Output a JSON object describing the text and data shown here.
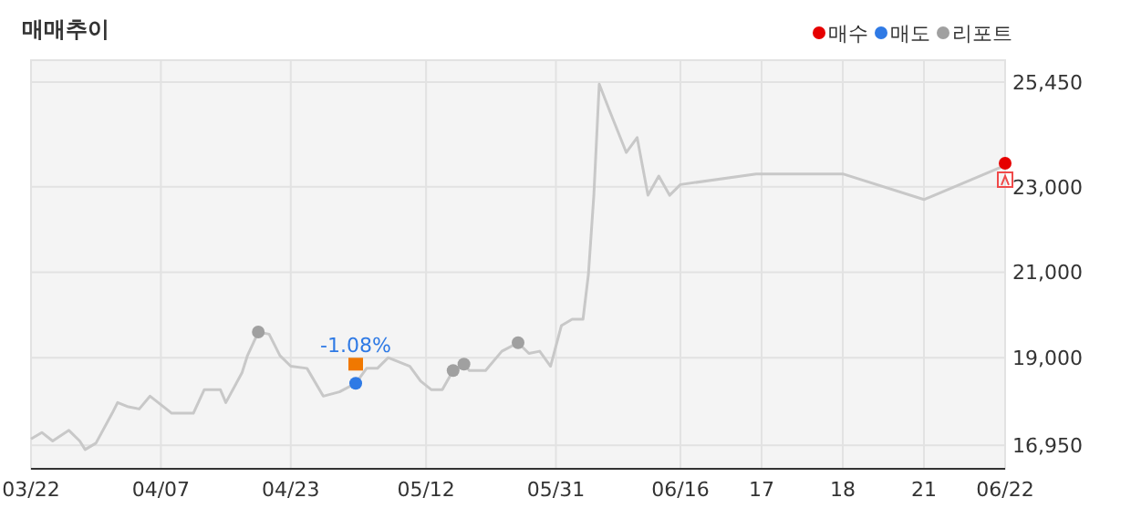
{
  "chart_data": {
    "type": "line",
    "title": "매매추이",
    "categories": [
      "03/22",
      null,
      null,
      null,
      null,
      null,
      null,
      null,
      null,
      null,
      null,
      null,
      null,
      null,
      null,
      null,
      null,
      null,
      null,
      null,
      null,
      null,
      null,
      null,
      "04/07",
      null,
      null,
      null,
      null,
      null,
      null,
      null,
      null,
      null,
      null,
      null,
      null,
      null,
      null,
      null,
      null,
      null,
      null,
      null,
      null,
      null,
      null,
      null,
      "04/23",
      null,
      null,
      null,
      null,
      null,
      null,
      null,
      null,
      null,
      null,
      null,
      null,
      null,
      null,
      null,
      null,
      null,
      null,
      null,
      null,
      null,
      null,
      null,
      null,
      "05/12",
      null,
      null,
      null,
      null,
      null,
      null,
      null,
      null,
      null,
      null,
      null,
      null,
      null,
      null,
      null,
      null,
      null,
      null,
      null,
      null,
      null,
      null,
      null,
      "05/31",
      null,
      null,
      null,
      null,
      null,
      null,
      null,
      null,
      null,
      null,
      null,
      null,
      null,
      null,
      null,
      null,
      null,
      null,
      null,
      null,
      null,
      null,
      "06/16",
      null,
      null,
      null,
      null,
      null,
      null,
      null,
      null,
      null,
      null,
      null,
      null,
      null,
      null,
      "17",
      null,
      null,
      null,
      null,
      null,
      null,
      null,
      null,
      null,
      null,
      null,
      null,
      null,
      null,
      "18",
      null,
      null,
      null,
      null,
      null,
      null,
      null,
      null,
      null,
      null,
      null,
      null,
      null,
      null,
      "21",
      null,
      null,
      null,
      null,
      null,
      null,
      null,
      null,
      null,
      null,
      null,
      null,
      null,
      null,
      "06/22"
    ],
    "ylim": [
      16400,
      25960
    ],
    "yticks": [
      {
        "value": 16950,
        "label": "16,950"
      },
      {
        "value": 19000,
        "label": "19,000"
      },
      {
        "value": 21000,
        "label": "21,000"
      },
      {
        "value": 23000,
        "label": "23,000"
      },
      {
        "value": 25450,
        "label": "25,450"
      }
    ],
    "grid": true,
    "legend": "top right",
    "series": [
      {
        "color": "#c8c8c8",
        "marker": "none",
        "values": [
          17100,
          null,
          17250,
          null,
          17050,
          null,
          null,
          17300,
          null,
          17050,
          16850,
          null,
          17000,
          null,
          null,
          17700,
          17950,
          null,
          17850,
          null,
          17800,
          null,
          18100,
          null,
          null,
          17800,
          17700,
          null,
          null,
          null,
          17700,
          null,
          18250,
          null,
          null,
          18250,
          17950,
          null,
          null,
          18650,
          19050,
          null,
          19600,
          null,
          19550,
          null,
          19050,
          null,
          18800,
          null,
          null,
          18750,
          null,
          null,
          18100,
          null,
          null,
          18200,
          null,
          null,
          18400,
          null,
          18750,
          null,
          18750,
          null,
          19000,
          null,
          null,
          null,
          18800,
          null,
          18450,
          null,
          18250,
          null,
          18250,
          null,
          18700,
          null,
          18850,
          18700,
          null,
          null,
          18700,
          null,
          null,
          19150,
          null,
          null,
          19350,
          null,
          19100,
          null,
          19150,
          null,
          18800,
          null,
          19750,
          null,
          19900,
          null,
          19900,
          20950,
          22800,
          25400,
          null,
          24750,
          null,
          null,
          23800,
          null,
          24150,
          null,
          22800,
          null,
          23250,
          null,
          22800,
          null,
          23050,
          null,
          null,
          null,
          null,
          null,
          null,
          null,
          null,
          null,
          null,
          null,
          null,
          null,
          23300,
          null,
          null,
          null,
          null,
          null,
          null,
          null,
          null,
          null,
          null,
          null,
          null,
          null,
          null,
          null,
          23300,
          null,
          null,
          null,
          null,
          null,
          null,
          null,
          null,
          null,
          null,
          null,
          null,
          null,
          null,
          22700,
          null,
          null,
          null,
          null,
          null,
          null,
          null,
          null,
          null,
          null,
          null,
          null,
          null,
          null,
          23500
        ]
      },
      {
        "type": "scatter",
        "name": "매수",
        "color": "#e60000",
        "marker": "circle",
        "values": [
          null,
          null,
          null,
          null,
          null,
          null,
          null,
          null,
          null,
          null,
          null,
          null,
          null,
          null,
          null,
          null,
          null,
          null,
          null,
          null,
          null,
          null,
          null,
          null,
          null,
          null,
          null,
          null,
          null,
          null,
          null,
          null,
          null,
          null,
          null,
          null,
          null,
          null,
          null,
          null,
          null,
          null,
          null,
          null,
          null,
          null,
          null,
          null,
          null,
          null,
          null,
          null,
          null,
          null,
          null,
          null,
          null,
          null,
          null,
          null,
          null,
          null,
          null,
          null,
          null,
          null,
          null,
          null,
          null,
          null,
          null,
          null,
          null,
          null,
          null,
          null,
          null,
          null,
          null,
          null,
          null,
          null,
          null,
          null,
          null,
          null,
          null,
          null,
          null,
          null,
          null,
          null,
          null,
          null,
          null,
          null,
          null,
          null,
          null,
          null,
          null,
          null,
          null,
          null,
          null,
          null,
          null,
          null,
          null,
          null,
          null,
          null,
          null,
          null,
          null,
          null,
          null,
          null,
          null,
          null,
          null,
          null,
          null,
          null,
          null,
          null,
          null,
          null,
          null,
          null,
          null,
          null,
          null,
          null,
          null,
          null,
          null,
          null,
          null,
          null,
          null,
          null,
          null,
          null,
          null,
          null,
          null,
          null,
          null,
          null,
          null,
          null,
          null,
          null,
          null,
          null,
          null,
          null,
          null,
          null,
          null,
          null,
          null,
          null,
          null,
          null,
          null,
          null,
          null,
          null,
          null,
          null,
          null,
          null,
          null,
          null,
          null,
          null,
          null,
          null,
          23550
        ]
      },
      {
        "type": "scatter",
        "name": "매도",
        "color": "#2f7ae5",
        "marker": "circle",
        "values": [
          null,
          null,
          null,
          null,
          null,
          null,
          null,
          null,
          null,
          null,
          null,
          null,
          null,
          null,
          null,
          null,
          null,
          null,
          null,
          null,
          null,
          null,
          null,
          null,
          null,
          null,
          null,
          null,
          null,
          null,
          null,
          null,
          null,
          null,
          null,
          null,
          null,
          null,
          null,
          null,
          null,
          null,
          null,
          null,
          null,
          null,
          null,
          null,
          null,
          null,
          null,
          null,
          null,
          null,
          null,
          null,
          null,
          null,
          null,
          null,
          18400,
          null,
          null,
          null,
          null,
          null,
          null,
          null,
          null,
          null,
          null,
          null,
          null,
          null,
          null,
          null,
          null,
          null,
          null,
          null,
          null,
          null,
          null,
          null,
          null,
          null,
          null,
          null,
          null,
          null,
          null,
          null,
          null,
          null,
          null,
          null,
          null,
          null,
          null,
          null,
          null,
          null,
          null,
          null,
          null,
          null,
          null,
          null,
          null,
          null,
          null,
          null,
          null,
          null,
          null,
          null,
          null,
          null,
          null,
          null,
          null,
          null,
          null,
          null,
          null,
          null,
          null,
          null,
          null,
          null,
          null,
          null,
          null,
          null,
          null,
          null,
          null,
          null,
          null,
          null,
          null,
          null,
          null,
          null,
          null,
          null,
          null,
          null,
          null,
          null,
          null,
          null,
          null,
          null,
          null,
          null,
          null,
          null,
          null,
          null,
          null,
          null,
          null,
          null,
          null,
          null,
          null,
          null,
          null,
          null,
          null,
          null,
          null,
          null,
          null,
          null,
          null,
          null,
          null,
          null,
          null
        ]
      },
      {
        "type": "scatter",
        "name": "리포트",
        "color": "#a0a0a0",
        "marker": "circle",
        "values": [
          null,
          null,
          null,
          null,
          null,
          null,
          null,
          null,
          null,
          null,
          null,
          null,
          null,
          null,
          null,
          null,
          null,
          null,
          null,
          null,
          null,
          null,
          null,
          null,
          null,
          null,
          null,
          null,
          null,
          null,
          null,
          null,
          null,
          null,
          null,
          null,
          null,
          null,
          null,
          null,
          null,
          null,
          19600,
          null,
          null,
          null,
          null,
          null,
          null,
          null,
          null,
          null,
          null,
          null,
          null,
          null,
          null,
          null,
          null,
          null,
          null,
          null,
          null,
          null,
          null,
          null,
          null,
          null,
          null,
          null,
          null,
          null,
          null,
          null,
          null,
          null,
          null,
          null,
          18700,
          null,
          18850,
          null,
          null,
          null,
          null,
          null,
          null,
          null,
          null,
          null,
          19350,
          null,
          null,
          null,
          null,
          null,
          null,
          null,
          null,
          null,
          null,
          null,
          null,
          null,
          null,
          null,
          null,
          null,
          null,
          null,
          null,
          null,
          null,
          null,
          null,
          null,
          null,
          null,
          null,
          null,
          null,
          null,
          null,
          null,
          null,
          null,
          null,
          null,
          null,
          null,
          null,
          null,
          null,
          null,
          null,
          null,
          null,
          null,
          null,
          null,
          null,
          null,
          null,
          null,
          null,
          null,
          null,
          null,
          null,
          null,
          null,
          null,
          null,
          null,
          null,
          null,
          null,
          null,
          null,
          null,
          null,
          null,
          null,
          null,
          null,
          null,
          null,
          null,
          null,
          null,
          null,
          null,
          null,
          null,
          null,
          null,
          null,
          null,
          null,
          null,
          null
        ]
      }
    ],
    "annotations": [
      {
        "text": "-1.08%",
        "y": 18400
      }
    ]
  }
}
